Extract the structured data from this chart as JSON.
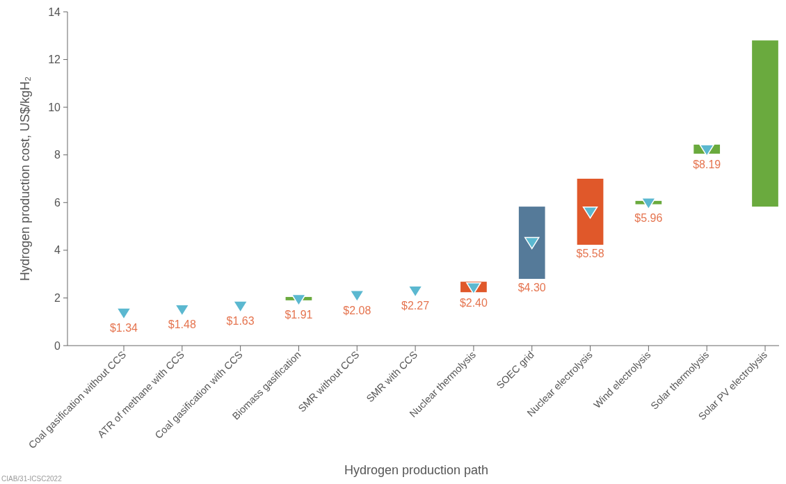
{
  "chart_data": {
    "type": "bar",
    "xlabel": "Hydrogen production path",
    "ylabel": "Hydrogen production cost, US$/kgH₂",
    "categories": [
      "Coal gasification without CCS",
      "ATR of methane with CCS",
      "Coal gasification with CCS",
      "Biomass gasification",
      "SMR without CCS",
      "SMR with CCS",
      "Nuclear thermolysis",
      "SOEC grid",
      "Nuclear electrolysis",
      "Wind electrolysis",
      "Solar thermolysis",
      "Solar PV electrolysis"
    ],
    "ylim": [
      0,
      14
    ],
    "yticks": [
      0,
      2,
      4,
      6,
      8,
      10,
      12,
      14
    ],
    "series": [
      {
        "base": [
          null,
          null,
          null,
          1.9,
          null,
          null,
          2.24,
          2.8,
          4.23,
          5.93,
          8.05,
          5.83
        ],
        "values": [
          null,
          null,
          null,
          0.14,
          null,
          null,
          0.44,
          3.03,
          2.77,
          0.14,
          0.38,
          6.97
        ],
        "colors": [
          null,
          null,
          null,
          "#6aaa3e",
          null,
          null,
          "#e0582a",
          "#557a99",
          "#e0582a",
          "#6aaa3e",
          "#6aaa3e",
          "#6aaa3e"
        ]
      },
      {
        "type": "scatter",
        "marker": "triangle",
        "color": "#5bb8d0",
        "x": [
          "Coal gasification without CCS",
          "ATR of methane with CCS",
          "Coal gasification with CCS",
          "Biomass gasification",
          "SMR without CCS",
          "SMR with CCS",
          "Nuclear thermolysis",
          "SOEC grid",
          "Nuclear electrolysis",
          "Wind electrolysis",
          "Solar thermolysis"
        ],
        "values": [
          1.34,
          1.48,
          1.63,
          1.91,
          2.08,
          2.27,
          2.4,
          4.3,
          5.58,
          5.96,
          8.19
        ],
        "value_labels": [
          "$1.34",
          "$1.48",
          "$1.63",
          "$1.91",
          "$2.08",
          "$2.27",
          "$2.40",
          "$4.30",
          "$5.58",
          "$5.96",
          "$8.19"
        ]
      }
    ],
    "annotations": [
      "CIAB/31-ICSC2022"
    ]
  }
}
